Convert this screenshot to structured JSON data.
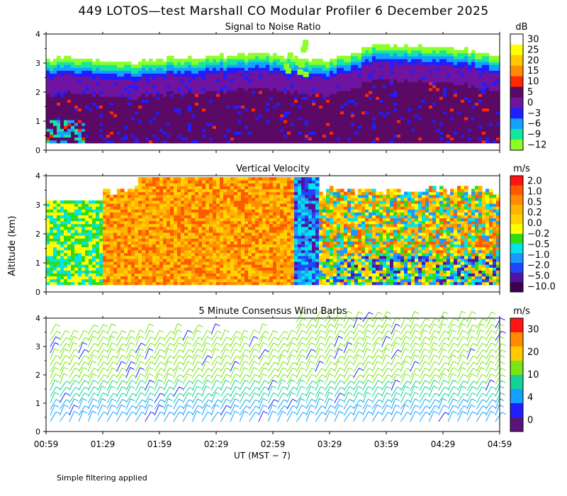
{
  "page": {
    "title": "449 LOTOS—test Marshall CO Modular Profiler  6 December 2025",
    "footnote": "Simple filtering applied",
    "ylabel": "Altitude (km)",
    "xlabel": "UT  (MST − 7)"
  },
  "colors": {
    "snr_scale": [
      "#ffffff",
      "#ffff00",
      "#ffc800",
      "#ff8c00",
      "#ff2800",
      "#5a0a64",
      "#6e14a0",
      "#1e1eff",
      "#14a0ff",
      "#14e6a0",
      "#8cff28"
    ],
    "vel_scale": [
      "#ff1414",
      "#ff5a00",
      "#ff8c00",
      "#ffb400",
      "#ffd200",
      "#ffff00",
      "#32dc14",
      "#00e6e6",
      "#1e96ff",
      "#1e46ff",
      "#5014a0",
      "#3c0050"
    ],
    "wind_scale": [
      "#ff1414",
      "#ff8c00",
      "#ffc800",
      "#78e614",
      "#14d296",
      "#14a0ff",
      "#1e1eff",
      "#5a1478"
    ]
  },
  "chart_data": [
    {
      "type": "heatmap",
      "title": "Signal to Noise Ratio",
      "ylabel": "Altitude (km)",
      "ylim": [
        0,
        4
      ],
      "yticks": [
        "0",
        "1",
        "2",
        "3",
        "4"
      ],
      "xticks": [
        "00:59",
        "01:29",
        "01:59",
        "02:29",
        "02:59",
        "03:29",
        "03:59",
        "04:29",
        "04:59"
      ],
      "xlim_hours": [
        0.983,
        4.983
      ],
      "colorbar": {
        "unit": "dB",
        "labels": [
          "30",
          "25",
          "20",
          "15",
          "10",
          "5",
          "0",
          "−3",
          "−6",
          "−9",
          "−12"
        ]
      },
      "data_top_km": [
        3.1,
        3.1,
        3.0,
        3.0,
        3.1,
        3.15,
        3.2,
        3.3,
        3.2,
        3.0,
        3.2,
        3.6,
        3.55,
        3.5,
        3.4,
        3.2
      ],
      "data_bottom_km": 0.25
    },
    {
      "type": "heatmap",
      "title": "Vertical Velocity",
      "ylabel": "Altitude (km)",
      "ylim": [
        0,
        4
      ],
      "yticks": [
        "0",
        "1",
        "2",
        "3",
        "4"
      ],
      "xticks": [
        "00:59",
        "01:29",
        "01:59",
        "02:29",
        "02:59",
        "03:29",
        "03:59",
        "04:29",
        "04:59"
      ],
      "colorbar": {
        "unit": "m/s",
        "labels": [
          "2.0",
          "1.0",
          "0.5",
          "0.2",
          "0.0",
          "−0.2",
          "−0.5",
          "−1.0",
          "−2.0",
          "−5.0",
          "−10.0"
        ]
      }
    },
    {
      "type": "scatter",
      "title": "5 Minute Consensus Wind Barbs",
      "ylabel": "Altitude (km)",
      "ylim": [
        0,
        4
      ],
      "yticks": [
        "0",
        "1",
        "2",
        "3",
        "4"
      ],
      "xticks": [
        "00:59",
        "01:29",
        "01:59",
        "02:29",
        "02:59",
        "03:29",
        "03:59",
        "04:29",
        "04:59"
      ],
      "xlabel": "UT  (MST − 7)",
      "colorbar": {
        "unit": "m/s",
        "labels": [
          "30",
          "20",
          "10",
          "4",
          "0"
        ]
      }
    }
  ]
}
